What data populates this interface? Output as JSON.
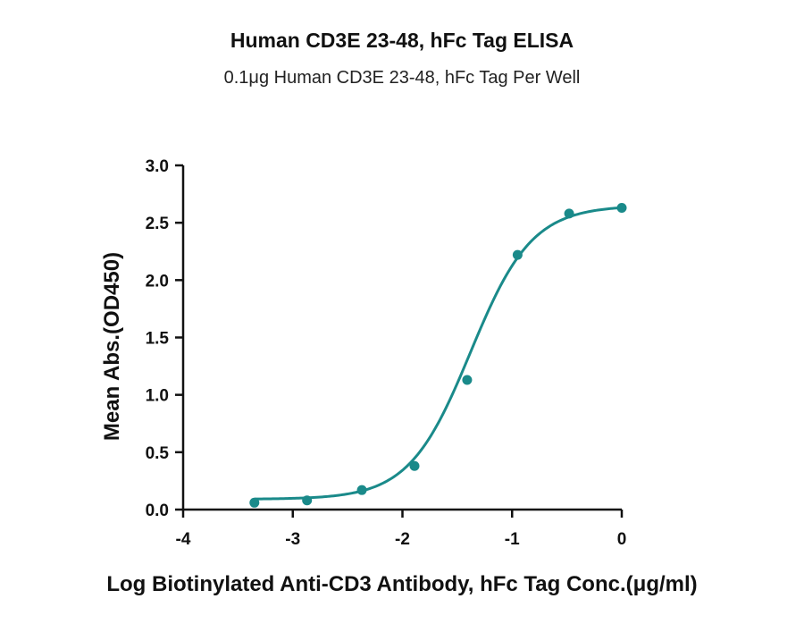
{
  "chart_data": {
    "type": "scatter",
    "title": "Human CD3E 23-48, hFc Tag ELISA",
    "subtitle": "0.1μg Human CD3E 23-48, hFc Tag Per Well",
    "xlabel": "Log Biotinylated Anti-CD3 Antibody, hFc Tag Conc.(μg/ml)",
    "ylabel": "Mean Abs.(OD450)",
    "xlim": [
      -4,
      0
    ],
    "ylim": [
      0,
      3
    ],
    "x_ticks": [
      "-4",
      "-3",
      "-2",
      "-1",
      "0"
    ],
    "y_ticks": [
      "0.0",
      "0.5",
      "1.0",
      "1.5",
      "2.0",
      "2.5",
      "3.0"
    ],
    "grid": false,
    "color": "#1a8a8a",
    "series": [
      {
        "x": [
          -3.35,
          -2.87,
          -2.37,
          -1.89,
          -1.41,
          -0.95,
          -0.48,
          0.0
        ],
        "y": [
          0.06,
          0.08,
          0.17,
          0.38,
          1.13,
          2.22,
          2.58,
          2.63
        ],
        "fit": "four-parameter logistic",
        "fit_params": {
          "bottom": 0.09,
          "top": 2.65,
          "logEC50": -1.38,
          "hill": 1.55
        }
      }
    ]
  }
}
